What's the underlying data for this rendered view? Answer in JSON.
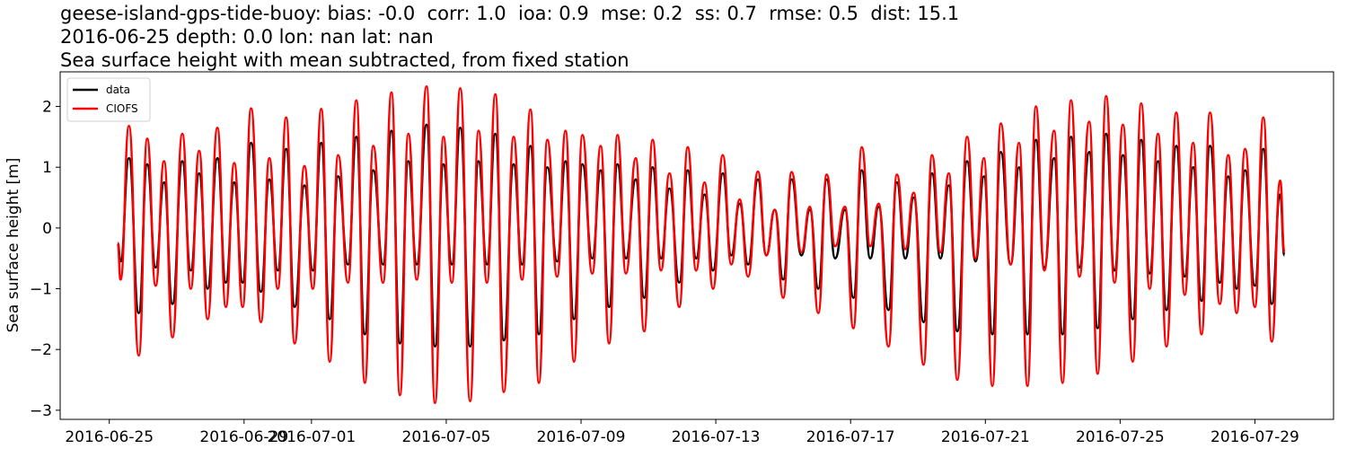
{
  "chart_data": {
    "type": "line",
    "title_lines": [
      "geese-island-gps-tide-buoy: bias: -0.0  corr: 1.0  ioa: 0.9  mse: 0.2  ss: 0.7  rmse: 0.5  dist: 15.1",
      "2016-06-25 depth: 0.0 lon: nan lat: nan",
      "Sea surface height with mean subtracted, from fixed station"
    ],
    "y_label": "Sea surface height [m]",
    "legend": "upper left",
    "x": [
      "2016-06-25T06",
      "2016-06-25T08",
      "2016-06-25T14",
      "2016-06-25T21",
      "2016-06-26T03",
      "2016-06-26T09",
      "2016-06-26T15",
      "2016-06-26T21",
      "2016-06-27T04",
      "2016-06-27T10",
      "2016-06-27T16",
      "2016-06-27T22",
      "2016-06-28T05",
      "2016-06-28T11",
      "2016-06-28T17",
      "2016-06-28T23",
      "2016-06-29T05",
      "2016-06-29T12",
      "2016-06-29T18",
      "2016-06-30T00",
      "2016-06-30T06",
      "2016-06-30T12",
      "2016-06-30T19",
      "2016-07-01T01",
      "2016-07-01T07",
      "2016-07-01T13",
      "2016-07-01T19",
      "2016-07-02T02",
      "2016-07-02T08",
      "2016-07-02T14",
      "2016-07-02T20",
      "2016-07-03T03",
      "2016-07-03T09",
      "2016-07-03T15",
      "2016-07-03T21",
      "2016-07-04T03",
      "2016-07-04T10",
      "2016-07-04T16",
      "2016-07-04T22",
      "2016-07-05T04",
      "2016-07-05T10",
      "2016-07-05T17",
      "2016-07-05T23",
      "2016-07-06T05",
      "2016-07-06T11",
      "2016-07-06T17",
      "2016-07-07T00",
      "2016-07-07T06",
      "2016-07-07T12",
      "2016-07-07T18",
      "2016-07-08T00",
      "2016-07-08T07",
      "2016-07-08T13",
      "2016-07-08T19",
      "2016-07-09T01",
      "2016-07-09T08",
      "2016-07-09T14",
      "2016-07-09T20",
      "2016-07-10T02",
      "2016-07-10T08",
      "2016-07-10T15",
      "2016-07-10T21",
      "2016-07-11T03",
      "2016-07-11T09",
      "2016-07-11T15",
      "2016-07-11T22",
      "2016-07-12T04",
      "2016-07-12T10",
      "2016-07-12T16",
      "2016-07-12T22",
      "2016-07-13T05",
      "2016-07-13T11",
      "2016-07-13T17",
      "2016-07-13T23",
      "2016-07-14T06",
      "2016-07-14T12",
      "2016-07-14T18",
      "2016-07-15T00",
      "2016-07-15T06",
      "2016-07-15T13",
      "2016-07-15T19",
      "2016-07-16T01",
      "2016-07-16T07",
      "2016-07-16T13",
      "2016-07-16T20",
      "2016-07-17T02",
      "2016-07-17T08",
      "2016-07-17T14",
      "2016-07-17T20",
      "2016-07-18T03",
      "2016-07-18T09",
      "2016-07-18T15",
      "2016-07-18T21",
      "2016-07-19T04",
      "2016-07-19T10",
      "2016-07-19T16",
      "2016-07-19T22",
      "2016-07-20T04",
      "2016-07-20T11",
      "2016-07-20T17",
      "2016-07-20T23",
      "2016-07-21T05",
      "2016-07-21T11",
      "2016-07-21T18",
      "2016-07-22T00",
      "2016-07-22T06",
      "2016-07-22T12",
      "2016-07-22T18",
      "2016-07-23T01",
      "2016-07-23T07",
      "2016-07-23T13",
      "2016-07-23T19",
      "2016-07-24T02",
      "2016-07-24T08",
      "2016-07-24T14",
      "2016-07-24T20",
      "2016-07-25T02",
      "2016-07-25T09",
      "2016-07-25T15",
      "2016-07-25T21",
      "2016-07-26T03",
      "2016-07-26T09",
      "2016-07-26T16",
      "2016-07-26T22",
      "2016-07-27T04",
      "2016-07-27T10",
      "2016-07-27T16",
      "2016-07-27T23",
      "2016-07-28T05",
      "2016-07-28T11",
      "2016-07-28T17",
      "2016-07-29T00",
      "2016-07-29T06",
      "2016-07-29T12",
      "2016-07-29T18",
      "2016-07-29T21"
    ],
    "series": [
      {
        "name": "data",
        "color": "#000000",
        "values": [
          -0.25,
          -0.55,
          1.15,
          -1.4,
          1.05,
          -0.65,
          0.75,
          -1.25,
          1.1,
          -0.7,
          0.9,
          -1.0,
          1.15,
          -0.9,
          0.75,
          -0.9,
          1.4,
          -1.05,
          0.8,
          -0.7,
          1.3,
          -1.3,
          0.7,
          -0.7,
          1.4,
          -1.5,
          0.85,
          -0.6,
          1.5,
          -1.75,
          0.95,
          -0.6,
          1.6,
          -1.9,
          1.1,
          -0.6,
          1.7,
          -1.95,
          1.05,
          -0.6,
          1.65,
          -1.95,
          1.1,
          -0.6,
          1.55,
          -1.85,
          1.05,
          -0.6,
          1.35,
          -1.75,
          1.0,
          -0.55,
          1.1,
          -1.5,
          1.05,
          -0.5,
          0.95,
          -1.3,
          1.05,
          -0.5,
          0.8,
          -1.15,
          1.0,
          -0.5,
          0.65,
          -0.9,
          0.95,
          -0.5,
          0.55,
          -0.7,
          0.9,
          -0.45,
          0.4,
          -0.6,
          0.8,
          -0.45,
          0.3,
          -0.85,
          0.8,
          -0.45,
          0.3,
          -1.0,
          0.8,
          -0.5,
          0.3,
          -1.15,
          0.95,
          -0.5,
          0.35,
          -1.35,
          0.75,
          -0.5,
          0.5,
          -1.55,
          0.9,
          -0.5,
          0.7,
          -1.7,
          1.1,
          -0.55,
          0.85,
          -1.75,
          1.25,
          -0.6,
          1.0,
          -1.75,
          1.45,
          -0.65,
          1.15,
          -1.75,
          1.5,
          -0.65,
          1.25,
          -1.65,
          1.55,
          -0.7,
          1.2,
          -1.5,
          1.45,
          -0.75,
          1.1,
          -1.35,
          1.35,
          -0.8,
          1.0,
          -1.2,
          1.35,
          -0.9,
          0.85,
          -1.0,
          0.95,
          -0.95,
          1.3,
          -1.25,
          0.55,
          -0.45
        ]
      },
      {
        "name": "CIOFS",
        "color": "#ff0000",
        "values": [
          -0.25,
          -0.85,
          1.68,
          -2.1,
          1.47,
          -0.95,
          1.1,
          -1.8,
          1.55,
          -1.0,
          1.27,
          -1.5,
          1.65,
          -1.3,
          1.07,
          -1.3,
          1.97,
          -1.55,
          1.15,
          -1.0,
          1.82,
          -1.9,
          1.02,
          -1.0,
          1.96,
          -2.2,
          1.2,
          -0.9,
          2.1,
          -2.55,
          1.35,
          -0.9,
          2.23,
          -2.75,
          1.55,
          -0.85,
          2.33,
          -2.88,
          1.5,
          -0.9,
          2.3,
          -2.85,
          1.6,
          -0.9,
          2.2,
          -2.7,
          1.5,
          -0.85,
          1.95,
          -2.55,
          1.45,
          -0.8,
          1.6,
          -2.2,
          1.53,
          -0.75,
          1.35,
          -1.9,
          1.53,
          -0.75,
          1.15,
          -1.7,
          1.45,
          -0.7,
          0.9,
          -1.3,
          1.33,
          -0.7,
          0.75,
          -1.0,
          1.2,
          -0.6,
          0.47,
          -0.8,
          0.93,
          -0.45,
          0.3,
          -1.15,
          0.92,
          -0.4,
          0.35,
          -1.4,
          0.88,
          -0.3,
          0.35,
          -1.65,
          1.33,
          -0.3,
          0.4,
          -1.95,
          0.88,
          -0.35,
          0.58,
          -2.25,
          1.2,
          -0.4,
          0.9,
          -2.5,
          1.5,
          -0.5,
          1.15,
          -2.6,
          1.72,
          -0.6,
          1.4,
          -2.6,
          2.0,
          -0.7,
          1.6,
          -2.55,
          2.1,
          -0.8,
          1.75,
          -2.4,
          2.17,
          -0.9,
          1.7,
          -2.2,
          2.05,
          -1.0,
          1.55,
          -1.95,
          1.9,
          -1.1,
          1.4,
          -1.75,
          1.9,
          -1.25,
          1.2,
          -1.4,
          1.3,
          -1.3,
          1.82,
          -1.87,
          0.78,
          -0.4
        ]
      }
    ],
    "xlim": [
      "2016-06-23T13",
      "2016-07-31T08"
    ],
    "xticks": [
      "2016-06-25",
      "2016-06-29",
      "2016-07-01",
      "2016-07-05",
      "2016-07-09",
      "2016-07-13",
      "2016-07-17",
      "2016-07-21",
      "2016-07-25",
      "2016-07-29"
    ],
    "ylim": [
      -3.15,
      2.57
    ],
    "yticks": [
      {
        "value": -3,
        "label": "−3"
      },
      {
        "value": -2,
        "label": "−2"
      },
      {
        "value": -1,
        "label": "−1"
      },
      0,
      1,
      2
    ]
  }
}
